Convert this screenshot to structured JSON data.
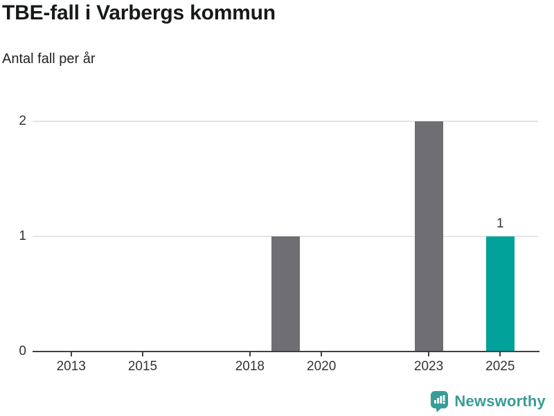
{
  "header": {
    "title": "TBE-fall i Varbergs kommun",
    "subtitle": "Antal fall per år"
  },
  "branding": {
    "logo_text": "Newsworthy",
    "logo_icon": "newsworthy-speech-bubble-bar-chart-icon",
    "logo_color": "#3a9c96"
  },
  "chart_data": {
    "type": "bar",
    "title": "TBE-fall i Varbergs kommun",
    "subtitle": "Antal fall per år",
    "unit": "Antal fall",
    "x_ticks": [
      "2013",
      "2015",
      "2018",
      "2020",
      "2023",
      "2025"
    ],
    "y_ticks": [
      0,
      1,
      2
    ],
    "x_range": [
      2011.92,
      2026.06
    ],
    "y_range": [
      0,
      2.27
    ],
    "grid": "horizontal-only",
    "legend": "none",
    "bars": [
      {
        "year": 2019,
        "value": 1,
        "highlight": false,
        "label": ""
      },
      {
        "year": 2023,
        "value": 2,
        "highlight": false,
        "label": ""
      },
      {
        "year": 2025,
        "value": 1,
        "highlight": true,
        "label": "1"
      }
    ],
    "colors": {
      "bar_default": "#6e6e73",
      "bar_highlight": "#00a29a",
      "gridline": "#e4e4e4",
      "axis": "#404040",
      "tick_text": "#333333"
    }
  }
}
